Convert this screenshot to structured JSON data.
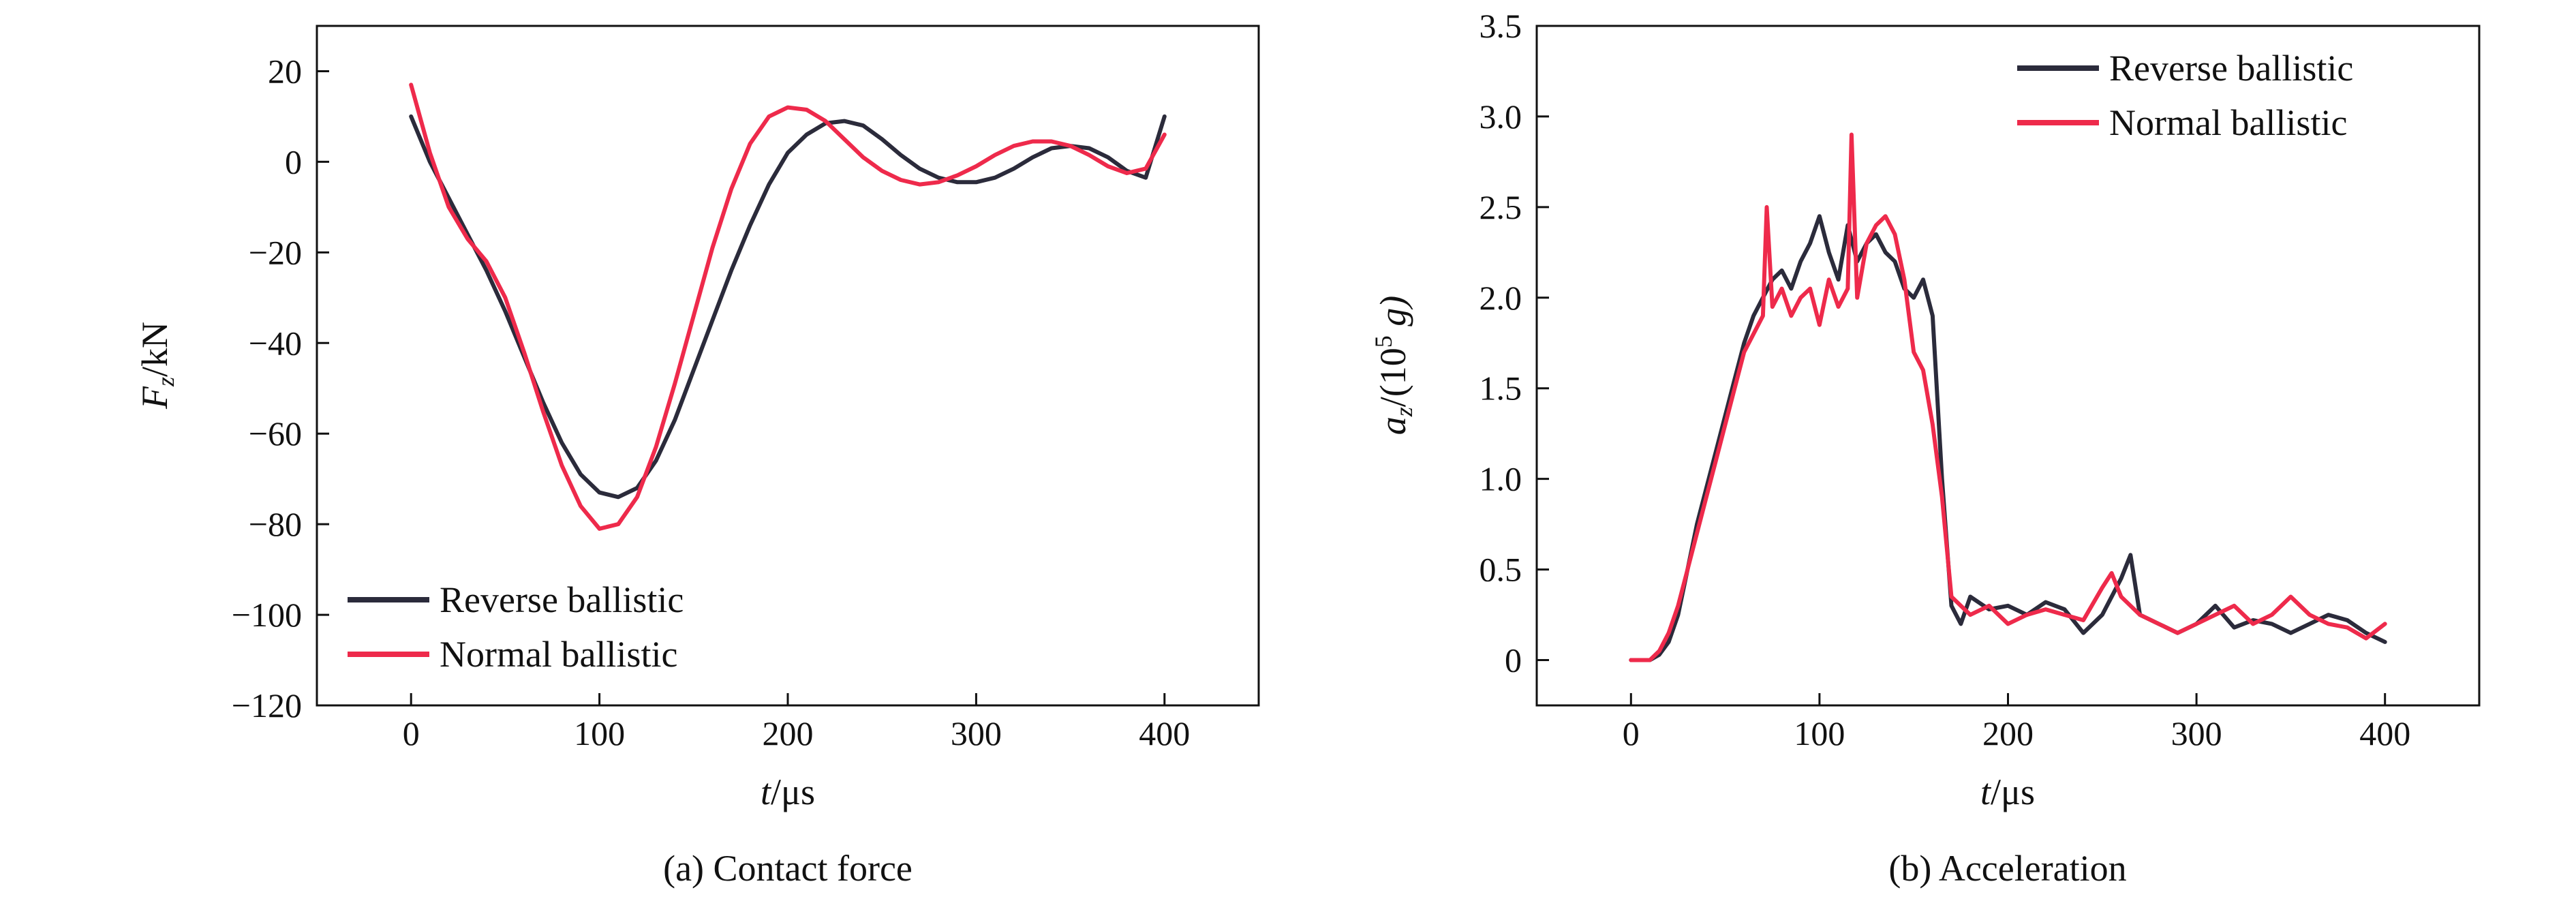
{
  "colors": {
    "reverse": "#2b2b3b",
    "normal": "#ee2a4b",
    "axis": "#111111"
  },
  "chart_data": [
    {
      "type": "line",
      "caption": "(a) Contact force",
      "xlabel_italic": "t",
      "xlabel_unit": "/μs",
      "ylabel_main": "F",
      "ylabel_sub": "z",
      "ylabel_unit": "/kN",
      "xlim": [
        -50,
        450
      ],
      "ylim": [
        -120,
        30
      ],
      "xticks": [
        0,
        100,
        200,
        300,
        400
      ],
      "yticks": [
        -120,
        -100,
        -80,
        -60,
        -40,
        -20,
        0,
        20
      ],
      "xtick_labels": [
        "0",
        "100",
        "200",
        "300",
        "400"
      ],
      "ytick_labels": [
        "−120",
        "−100",
        "−80",
        "−60",
        "−40",
        "−20",
        "0",
        "20"
      ],
      "legend_position": "bottom-left",
      "series": [
        {
          "name": "Reverse ballistic",
          "color": "#2b2b3b",
          "x": [
            0,
            10,
            20,
            30,
            40,
            50,
            60,
            70,
            80,
            90,
            100,
            110,
            120,
            130,
            140,
            150,
            160,
            170,
            180,
            190,
            200,
            210,
            220,
            230,
            240,
            250,
            260,
            270,
            280,
            290,
            300,
            310,
            320,
            330,
            340,
            350,
            360,
            370,
            380,
            390,
            400
          ],
          "y": [
            10,
            0,
            -8,
            -16,
            -24,
            -33,
            -43,
            -53,
            -62,
            -69,
            -73,
            -74,
            -72,
            -66,
            -57,
            -46,
            -35,
            -24,
            -14,
            -5,
            2,
            6,
            8.5,
            9,
            8,
            5,
            1.5,
            -1.5,
            -3.5,
            -4.5,
            -4.5,
            -3.5,
            -1.5,
            1,
            3,
            3.5,
            3,
            1,
            -2,
            -3.5,
            10
          ]
        },
        {
          "name": "Normal ballistic",
          "color": "#ee2a4b",
          "x": [
            0,
            10,
            20,
            30,
            40,
            50,
            60,
            70,
            80,
            90,
            100,
            110,
            120,
            130,
            140,
            150,
            160,
            170,
            180,
            190,
            200,
            210,
            220,
            230,
            240,
            250,
            260,
            270,
            280,
            290,
            300,
            310,
            320,
            330,
            340,
            350,
            360,
            370,
            380,
            390,
            400
          ],
          "y": [
            17,
            2,
            -10,
            -17,
            -22,
            -30,
            -42,
            -55,
            -67,
            -76,
            -81,
            -80,
            -74,
            -63,
            -49,
            -34,
            -19,
            -6,
            4,
            10,
            12,
            11.5,
            9,
            5,
            1,
            -2,
            -4,
            -5,
            -4.5,
            -3,
            -1,
            1.5,
            3.5,
            4.5,
            4.5,
            3.5,
            1.5,
            -1,
            -2.5,
            -1.5,
            6
          ]
        }
      ]
    },
    {
      "type": "line",
      "caption": "(b) Acceleration",
      "xlabel_italic": "t",
      "xlabel_unit": "/μs",
      "ylabel_main": "a",
      "ylabel_sub": "z",
      "ylabel_unit": "/(10",
      "ylabel_sup": "5",
      "ylabel_tail": " g)",
      "xlim": [
        -50,
        450
      ],
      "ylim": [
        -0.25,
        3.5
      ],
      "xticks": [
        0,
        100,
        200,
        300,
        400
      ],
      "yticks": [
        0,
        0.5,
        1.0,
        1.5,
        2.0,
        2.5,
        3.0,
        3.5
      ],
      "xtick_labels": [
        "0",
        "100",
        "200",
        "300",
        "400"
      ],
      "ytick_labels": [
        "0",
        "0.5",
        "1.0",
        "1.5",
        "2.0",
        "2.5",
        "3.0",
        "3.5"
      ],
      "legend_position": "top-right",
      "series": [
        {
          "name": "Reverse ballistic",
          "color": "#2b2b3b",
          "x": [
            0,
            10,
            15,
            20,
            25,
            30,
            35,
            40,
            45,
            50,
            55,
            60,
            65,
            70,
            75,
            80,
            85,
            90,
            95,
            100,
            105,
            110,
            115,
            120,
            125,
            130,
            135,
            140,
            145,
            150,
            155,
            160,
            165,
            170,
            175,
            180,
            190,
            200,
            210,
            220,
            230,
            240,
            250,
            260,
            265,
            270,
            280,
            290,
            300,
            310,
            320,
            330,
            340,
            350,
            360,
            370,
            380,
            390,
            400
          ],
          "y": [
            0,
            0,
            0.03,
            0.1,
            0.25,
            0.5,
            0.75,
            0.95,
            1.15,
            1.35,
            1.55,
            1.75,
            1.9,
            2.0,
            2.1,
            2.15,
            2.05,
            2.2,
            2.3,
            2.45,
            2.25,
            2.1,
            2.4,
            2.2,
            2.3,
            2.35,
            2.25,
            2.2,
            2.05,
            2.0,
            2.1,
            1.9,
            1.0,
            0.3,
            0.2,
            0.35,
            0.28,
            0.3,
            0.25,
            0.32,
            0.28,
            0.15,
            0.25,
            0.45,
            0.58,
            0.25,
            0.2,
            0.15,
            0.2,
            0.3,
            0.18,
            0.22,
            0.2,
            0.15,
            0.2,
            0.25,
            0.22,
            0.15,
            0.1
          ]
        },
        {
          "name": "Normal ballistic",
          "color": "#ee2a4b",
          "x": [
            0,
            10,
            15,
            20,
            25,
            30,
            35,
            40,
            45,
            50,
            55,
            60,
            65,
            70,
            72,
            75,
            80,
            85,
            90,
            95,
            100,
            105,
            110,
            115,
            117,
            120,
            125,
            130,
            135,
            140,
            145,
            150,
            155,
            160,
            165,
            170,
            175,
            180,
            190,
            200,
            210,
            220,
            230,
            240,
            250,
            255,
            260,
            270,
            280,
            290,
            300,
            310,
            320,
            330,
            340,
            350,
            360,
            370,
            380,
            390,
            400
          ],
          "y": [
            0,
            0,
            0.05,
            0.15,
            0.3,
            0.5,
            0.7,
            0.9,
            1.1,
            1.3,
            1.5,
            1.7,
            1.8,
            1.9,
            2.5,
            1.95,
            2.05,
            1.9,
            2.0,
            2.05,
            1.85,
            2.1,
            1.95,
            2.05,
            2.9,
            2.0,
            2.3,
            2.4,
            2.45,
            2.35,
            2.1,
            1.7,
            1.6,
            1.3,
            0.9,
            0.35,
            0.3,
            0.25,
            0.3,
            0.2,
            0.25,
            0.28,
            0.25,
            0.22,
            0.4,
            0.48,
            0.35,
            0.25,
            0.2,
            0.15,
            0.2,
            0.25,
            0.3,
            0.2,
            0.25,
            0.35,
            0.25,
            0.2,
            0.18,
            0.12,
            0.2
          ]
        }
      ]
    }
  ]
}
